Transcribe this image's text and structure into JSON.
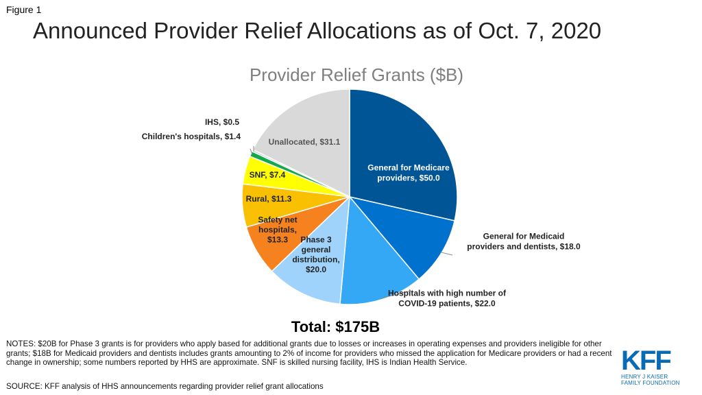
{
  "figure_label": "Figure 1",
  "title": "Announced Provider Relief Allocations as of Oct. 7, 2020",
  "total_label": "Total: $175B",
  "notes": "NOTES: $20B for Phase 3 grants is for providers who apply based for additional grants due to losses or increases in operating expenses and providers ineligible for other grants; $18B for Medicaid providers and dentists includes grants amounting to 2% of income for providers who missed the application for Medicare providers or had a recent change in ownership; some numbers reported by HHS are approximate. SNF is skilled nursing facility, IHS is Indian Health Service.",
  "source": "SOURCE: KFF analysis of HHS announcements  regarding provider relief grant allocations",
  "logo": {
    "mark": "KFF",
    "line1": "HENRY J KAISER",
    "line2": "FAMILY FOUNDATION"
  },
  "chart_data": {
    "type": "pie",
    "title": "Provider Relief Grants ($B)",
    "slices": [
      {
        "label_lines": [
          "General for Medicare",
          "providers, $50.0"
        ],
        "value": 50.0,
        "color": "#005596",
        "label_color": "#ffffff"
      },
      {
        "label_lines": [
          "General for Medicaid",
          "providers and dentists, $18.0"
        ],
        "value": 18.0,
        "color": "#0072ce",
        "label_color": "#222222"
      },
      {
        "label_lines": [
          "Hospitals with high number of",
          "COVID-19 patients, $22.0"
        ],
        "value": 22.0,
        "color": "#34a7f5",
        "label_color": "#222222"
      },
      {
        "label_lines": [
          "Phase 3",
          "general",
          "distribution,",
          "$20.0"
        ],
        "value": 20.0,
        "color": "#9fd3fb",
        "label_color": "#222222"
      },
      {
        "label_lines": [
          "Safety net",
          "hospitals,",
          "$13.3"
        ],
        "value": 13.3,
        "color": "#f5821f",
        "label_color": "#222222"
      },
      {
        "label_lines": [
          "Rural, $11.3"
        ],
        "value": 11.3,
        "color": "#f8c000",
        "label_color": "#222222"
      },
      {
        "label_lines": [
          "SNF, $7.4"
        ],
        "value": 7.4,
        "color": "#ffff00",
        "label_color": "#222222"
      },
      {
        "label_lines": [
          "Children's hospitals, $1.4"
        ],
        "value": 1.4,
        "color": "#12a94c",
        "label_color": "#222222"
      },
      {
        "label_lines": [
          "IHS, $0.5"
        ],
        "value": 0.5,
        "color": "#c9c9c9",
        "label_color": "#222222"
      },
      {
        "label_lines": [
          "Unallocated, $31.1"
        ],
        "value": 31.1,
        "color": "#d9d9d9",
        "label_color": "#555555"
      }
    ]
  }
}
